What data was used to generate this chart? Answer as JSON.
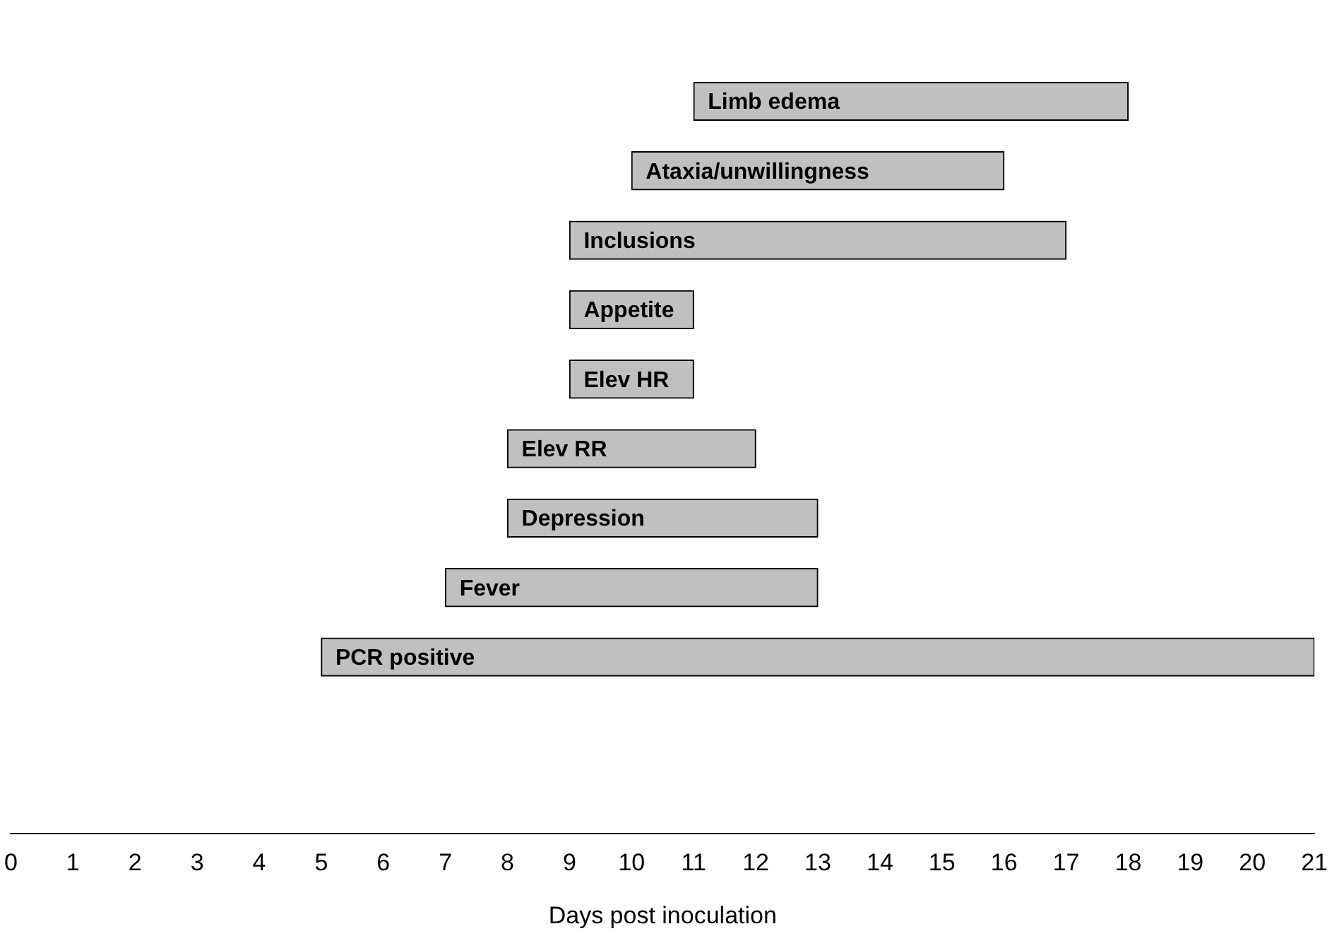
{
  "chart_data": {
    "type": "bar",
    "orientation": "horizontal",
    "xlabel": "Days post inoculation",
    "categories": [
      "Limb edema",
      "Ataxia/unwillingness",
      "Inclusions",
      "Appetite",
      "Elev HR",
      "Elev RR",
      "Depression",
      "Fever",
      "PCR positive"
    ],
    "base": [
      11,
      10,
      9,
      9,
      9,
      8,
      8,
      7,
      5
    ],
    "values": [
      7,
      6,
      8,
      2,
      2,
      4,
      5,
      6,
      16
    ],
    "color": "#c0c0c0",
    "xlim": [
      0,
      21
    ],
    "xticks": [
      0,
      1,
      2,
      3,
      4,
      5,
      6,
      7,
      8,
      9,
      10,
      11,
      12,
      13,
      14,
      15,
      16,
      17,
      18,
      19,
      20,
      21
    ],
    "grid": false,
    "legend": false,
    "tick_labels": "x"
  }
}
